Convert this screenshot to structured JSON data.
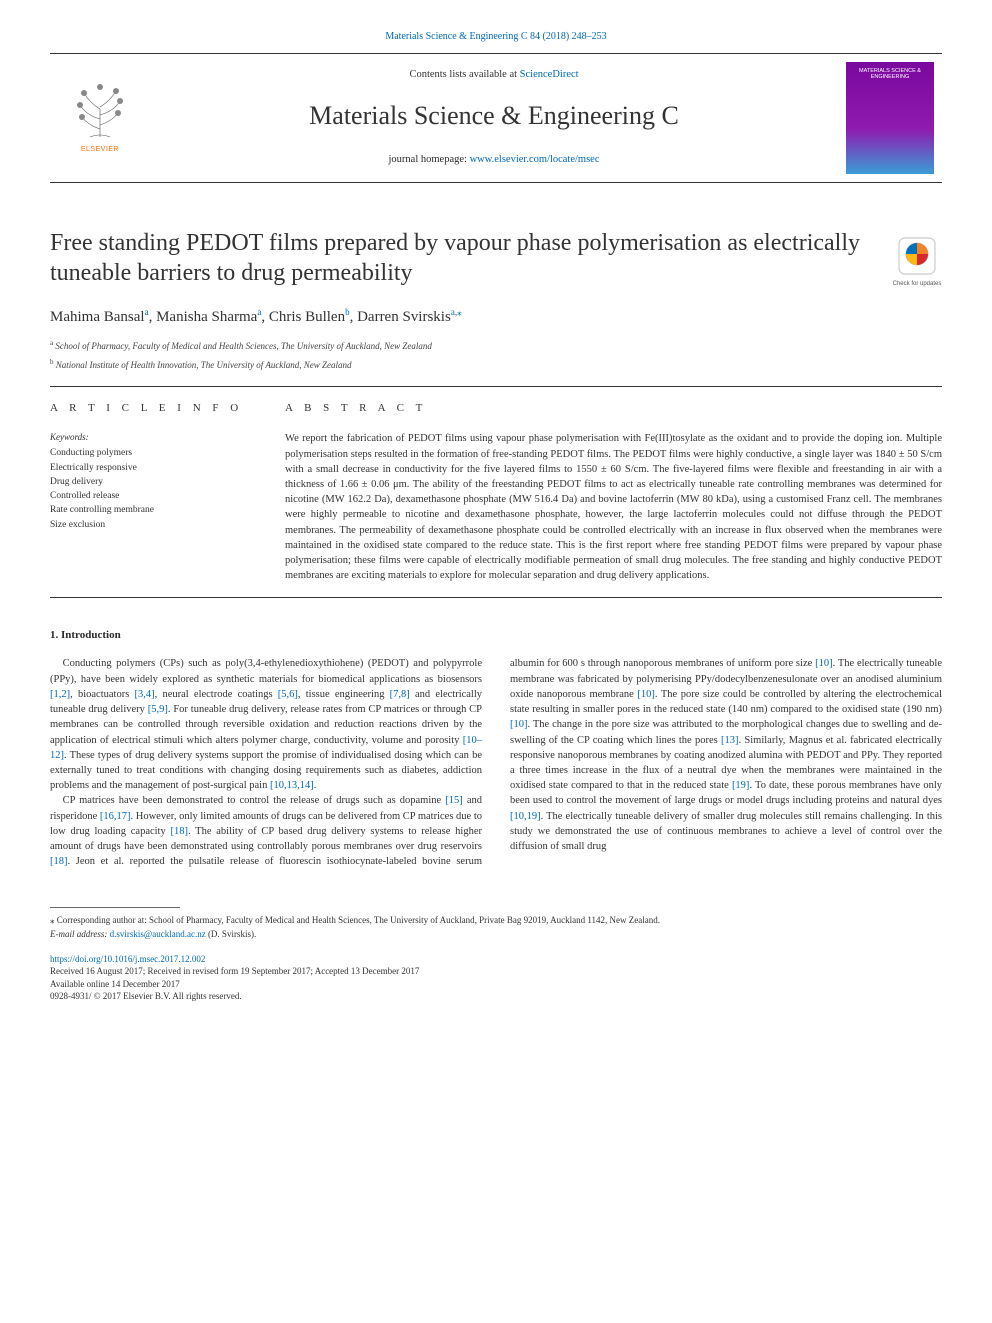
{
  "header": {
    "citation": "Materials Science & Engineering C 84 (2018) 248–253",
    "contents_prefix": "Contents lists available at ",
    "contents_link": "ScienceDirect",
    "journal_title": "Materials Science & Engineering C",
    "homepage_prefix": "journal homepage: ",
    "homepage_link": "www.elsevier.com/locate/msec",
    "elsevier_wordmark": "ELSEVIER",
    "cover_text": "MATERIALS SCIENCE & ENGINEERING"
  },
  "check_updates_label": "Check for updates",
  "title": "Free standing PEDOT films prepared by vapour phase polymerisation as electrically tuneable barriers to drug permeability",
  "authors_html": "Mahima Bansal<sup>a</sup>, Manisha Sharma<sup>a</sup>, Chris Bullen<sup>b</sup>, Darren Svirskis<sup>a,</sup><sup>⁎</sup>",
  "affiliations": [
    {
      "sup": "a",
      "text": "School of Pharmacy, Faculty of Medical and Health Sciences, The University of Auckland, New Zealand"
    },
    {
      "sup": "b",
      "text": "National Institute of Health Innovation, The University of Auckland, New Zealand"
    }
  ],
  "info": {
    "heading": "A R T I C L E  I N F O",
    "keywords_label": "Keywords:",
    "keywords": [
      "Conducting polymers",
      "Electrically responsive",
      "Drug delivery",
      "Controlled release",
      "Rate controlling membrane",
      "Size exclusion"
    ]
  },
  "abstract": {
    "heading": "A B S T R A C T",
    "text": "We report the fabrication of PEDOT films using vapour phase polymerisation with Fe(III)tosylate as the oxidant and to provide the doping ion. Multiple polymerisation steps resulted in the formation of free-standing PEDOT films. The PEDOT films were highly conductive, a single layer was 1840 ± 50 S/cm with a small decrease in conductivity for the five layered films to 1550 ± 60 S/cm. The five-layered films were flexible and freestanding in air with a thickness of 1.66 ± 0.06 μm. The ability of the freestanding PEDOT films to act as electrically tuneable rate controlling membranes was determined for nicotine (MW 162.2 Da), dexamethasone phosphate (MW 516.4 Da) and bovine lactoferrin (MW 80 kDa), using a customised Franz cell. The membranes were highly permeable to nicotine and dexamethasone phosphate, however, the large lactoferrin molecules could not diffuse through the PEDOT membranes. The permeability of dexamethasone phosphate could be controlled electrically with an increase in flux observed when the membranes were maintained in the oxidised state compared to the reduce state. This is the first report where free standing PEDOT films were prepared by vapour phase polymerisation; these films were capable of electrically modifiable permeation of small drug molecules. The free standing and highly conductive PEDOT membranes are exciting materials to explore for molecular separation and drug delivery applications."
  },
  "body": {
    "section_heading": "1. Introduction",
    "para1_parts": [
      "Conducting polymers (CPs) such as poly(3,4-ethylenedioxythiohene) (PEDOT) and polypyrrole (PPy), have been widely explored as synthetic materials for biomedical applications as biosensors ",
      "[1,2]",
      ", bioactuators ",
      "[3,4]",
      ", neural electrode coatings ",
      "[5,6]",
      ", tissue engineering ",
      "[7,8]",
      " and electrically tuneable drug delivery ",
      "[5,9]",
      ". For tuneable drug delivery, release rates from CP matrices or through CP membranes can be controlled through reversible oxidation and reduction reactions driven by the application of electrical stimuli which alters polymer charge, conductivity, volume and porosity ",
      "[10–12]",
      ". These types of drug delivery systems support the promise of individualised dosing which can be externally tuned to treat conditions with changing dosing requirements such as diabetes, addiction problems and the management of post-surgical pain ",
      "[10,13,14]",
      "."
    ],
    "para2_parts": [
      "CP matrices have been demonstrated to control the release of drugs such as dopamine ",
      "[15]",
      " and risperidone ",
      "[16,17]",
      ". However, only limited amounts of drugs can be delivered from CP matrices due to low drug loading capacity ",
      "[18]",
      ". The ability of CP based drug delivery systems to release higher amount of drugs have been demonstrated using controllably porous membranes over drug reservoirs ",
      "[18]",
      ". Jeon et al. reported the pulsatile release of fluorescin isothiocynate-labeled bovine serum albumin for 600 s through nanoporous membranes of uniform pore size ",
      "[10]",
      ". The electrically tuneable membrane was fabricated by polymerising PPy/dodecylbenzenesulonate over an anodised aluminium oxide nanoporous membrane ",
      "[10]",
      ". The pore size could be controlled by altering the electrochemical state resulting in smaller pores in the reduced state (140 nm) compared to the oxidised state (190 nm) ",
      "[10]",
      ". The change in the pore size was attributed to the morphological changes due to swelling and de-swelling of the CP coating which lines the pores ",
      "[13]",
      ". Similarly, Magnus et al. fabricated electrically responsive nanoporous membranes by coating anodized alumina with PEDOT and PPy. They reported a three times increase in the flux of a neutral dye when the membranes were maintained in the oxidised state compared to that in the reduced state ",
      "[19]",
      ". To date, these porous membranes have only been used to control the movement of large drugs or model drugs including proteins and natural dyes ",
      "[10,19]",
      ". The electrically tuneable delivery of smaller drug molecules still remains challenging. In this study we demonstrated the use of continuous membranes to achieve a level of control over the diffusion of small drug"
    ]
  },
  "footnote": {
    "corr_prefix": "⁎ Corresponding author at: School of Pharmacy, Faculty of Medical and Health Sciences, The University of Auckland, Private Bag 92019, Auckland 1142, New Zealand.",
    "email_label": "E-mail address: ",
    "email": "d.svirskis@auckland.ac.nz",
    "email_suffix": " (D. Svirskis)."
  },
  "footer": {
    "doi": "https://doi.org/10.1016/j.msec.2017.12.002",
    "received": "Received 16 August 2017; Received in revised form 19 September 2017; Accepted 13 December 2017",
    "available": "Available online 14 December 2017",
    "copyright": "0928-4931/ © 2017 Elsevier B.V. All rights reserved."
  },
  "colors": {
    "link": "#0068b8",
    "body_text": "#333333",
    "elsevier_orange": "#ff6b00",
    "cover_purple": "#7a089e",
    "cover_blue": "#3b9dd6",
    "crossmark_orange": "#f58220",
    "crossmark_blue": "#0071bc",
    "crossmark_yellow": "#fdb913",
    "crossmark_red": "#d9272e"
  }
}
